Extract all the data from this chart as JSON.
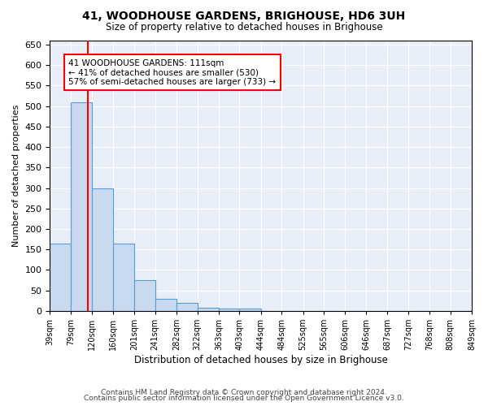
{
  "title": "41, WOODHOUSE GARDENS, BRIGHOUSE, HD6 3UH",
  "subtitle": "Size of property relative to detached houses in Brighouse",
  "xlabel": "Distribution of detached houses by size in Brighouse",
  "ylabel": "Number of detached properties",
  "bin_labels": [
    "39sqm",
    "79sqm",
    "120sqm",
    "160sqm",
    "201sqm",
    "241sqm",
    "282sqm",
    "322sqm",
    "363sqm",
    "403sqm",
    "444sqm",
    "484sqm",
    "525sqm",
    "565sqm",
    "606sqm",
    "646sqm",
    "687sqm",
    "727sqm",
    "768sqm",
    "808sqm",
    "849sqm"
  ],
  "bar_values": [
    165,
    510,
    300,
    165,
    75,
    30,
    20,
    8,
    5,
    5,
    0,
    0,
    0,
    0,
    0,
    0,
    0,
    0,
    0,
    0
  ],
  "bar_color": "#c9daf0",
  "bar_edge_color": "#5b9bd5",
  "vline_x": 111,
  "vline_color": "red",
  "annotation_text": "41 WOODHOUSE GARDENS: 111sqm\n← 41% of detached houses are smaller (530)\n57% of semi-detached houses are larger (733) →",
  "annotation_box_color": "white",
  "annotation_box_edge": "red",
  "ylim": [
    0,
    660
  ],
  "yticks": [
    0,
    50,
    100,
    150,
    200,
    250,
    300,
    350,
    400,
    450,
    500,
    550,
    600,
    650
  ],
  "background_color": "#e8eef8",
  "grid_color": "white",
  "footer_line1": "Contains HM Land Registry data © Crown copyright and database right 2024.",
  "footer_line2": "Contains public sector information licensed under the Open Government Licence v3.0."
}
